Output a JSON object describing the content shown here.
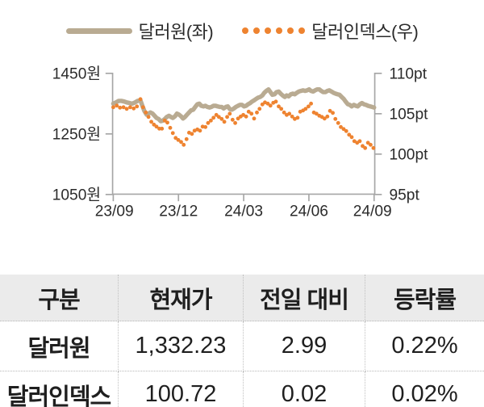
{
  "legend": {
    "krw_label": "달러원(좌)",
    "dxy_label": "달러인덱스(우)"
  },
  "colors": {
    "krw_line": "#b9ab92",
    "dxy_dot": "#ee8330",
    "axis": "#a6a6a6",
    "tick_text": "#2b2b2b",
    "table_header_bg": "#ebebeb",
    "table_dotted_border": "#bfbfbf"
  },
  "chart_data": {
    "type": "line",
    "title": "",
    "xlabel": "",
    "x_unit": "months since 2023-09",
    "x_range_months": [
      0,
      12
    ],
    "x_ticks": [
      "23/09",
      "23/12",
      "24/03",
      "24/06",
      "24/09"
    ],
    "left_axis": {
      "label": "달러원",
      "unit": "원",
      "range": [
        1050,
        1450
      ],
      "ticks": [
        "1450원",
        "1250원",
        "1050원"
      ]
    },
    "right_axis": {
      "label": "달러인덱스",
      "unit": "pt",
      "range": [
        95,
        110
      ],
      "ticks": [
        "110pt",
        "105pt",
        "100pt",
        "95pt"
      ]
    },
    "grid": false,
    "legend_position": "top",
    "series": [
      {
        "name": "달러원(좌)",
        "axis": "left",
        "style": "solid",
        "color": "#b9ab92",
        "points": [
          [
            0,
            1350
          ],
          [
            0.12,
            1354
          ],
          [
            0.25,
            1359
          ],
          [
            0.37,
            1359
          ],
          [
            0.5,
            1357
          ],
          [
            0.62,
            1354
          ],
          [
            0.75,
            1352
          ],
          [
            0.87,
            1350
          ],
          [
            1,
            1354
          ],
          [
            1.12,
            1359
          ],
          [
            1.25,
            1361
          ],
          [
            1.34,
            1343
          ],
          [
            1.43,
            1326
          ],
          [
            1.53,
            1314
          ],
          [
            1.62,
            1317
          ],
          [
            1.71,
            1321
          ],
          [
            1.81,
            1317
          ],
          [
            1.9,
            1310
          ],
          [
            1.99,
            1303
          ],
          [
            2.09,
            1299
          ],
          [
            2.18,
            1292
          ],
          [
            2.28,
            1294
          ],
          [
            2.37,
            1299
          ],
          [
            2.46,
            1306
          ],
          [
            2.56,
            1310
          ],
          [
            2.65,
            1306
          ],
          [
            2.74,
            1303
          ],
          [
            2.84,
            1308
          ],
          [
            2.93,
            1317
          ],
          [
            3.02,
            1314
          ],
          [
            3.12,
            1308
          ],
          [
            3.21,
            1301
          ],
          [
            3.3,
            1306
          ],
          [
            3.4,
            1314
          ],
          [
            3.49,
            1321
          ],
          [
            3.58,
            1328
          ],
          [
            3.68,
            1330
          ],
          [
            3.77,
            1339
          ],
          [
            3.87,
            1348
          ],
          [
            3.96,
            1350
          ],
          [
            4.05,
            1343
          ],
          [
            4.15,
            1341
          ],
          [
            4.24,
            1343
          ],
          [
            4.33,
            1339
          ],
          [
            4.43,
            1337
          ],
          [
            4.52,
            1339
          ],
          [
            4.61,
            1343
          ],
          [
            4.71,
            1343
          ],
          [
            4.8,
            1341
          ],
          [
            4.9,
            1339
          ],
          [
            4.99,
            1339
          ],
          [
            5.08,
            1334
          ],
          [
            5.18,
            1339
          ],
          [
            5.27,
            1341
          ],
          [
            5.36,
            1332
          ],
          [
            5.45,
            1330
          ],
          [
            5.55,
            1334
          ],
          [
            5.64,
            1339
          ],
          [
            5.74,
            1343
          ],
          [
            5.83,
            1346
          ],
          [
            5.92,
            1346
          ],
          [
            6.02,
            1341
          ],
          [
            6.11,
            1343
          ],
          [
            6.2,
            1348
          ],
          [
            6.3,
            1352
          ],
          [
            6.39,
            1357
          ],
          [
            6.48,
            1361
          ],
          [
            6.58,
            1366
          ],
          [
            6.67,
            1370
          ],
          [
            6.76,
            1372
          ],
          [
            6.86,
            1377
          ],
          [
            6.95,
            1386
          ],
          [
            7.04,
            1392
          ],
          [
            7.14,
            1397
          ],
          [
            7.23,
            1388
          ],
          [
            7.32,
            1379
          ],
          [
            7.42,
            1381
          ],
          [
            7.51,
            1388
          ],
          [
            7.61,
            1390
          ],
          [
            7.7,
            1383
          ],
          [
            7.79,
            1377
          ],
          [
            7.89,
            1372
          ],
          [
            7.98,
            1377
          ],
          [
            8.07,
            1374
          ],
          [
            8.17,
            1381
          ],
          [
            8.26,
            1383
          ],
          [
            8.35,
            1381
          ],
          [
            8.45,
            1386
          ],
          [
            8.54,
            1390
          ],
          [
            8.63,
            1392
          ],
          [
            8.73,
            1394
          ],
          [
            8.82,
            1392
          ],
          [
            8.92,
            1394
          ],
          [
            9.01,
            1397
          ],
          [
            9.1,
            1392
          ],
          [
            9.2,
            1390
          ],
          [
            9.29,
            1394
          ],
          [
            9.38,
            1397
          ],
          [
            9.48,
            1397
          ],
          [
            9.57,
            1392
          ],
          [
            9.66,
            1388
          ],
          [
            9.76,
            1388
          ],
          [
            9.85,
            1392
          ],
          [
            9.94,
            1394
          ],
          [
            10.04,
            1390
          ],
          [
            10.13,
            1386
          ],
          [
            10.23,
            1383
          ],
          [
            10.32,
            1381
          ],
          [
            10.41,
            1379
          ],
          [
            10.51,
            1372
          ],
          [
            10.6,
            1366
          ],
          [
            10.69,
            1357
          ],
          [
            10.79,
            1348
          ],
          [
            10.88,
            1346
          ],
          [
            10.97,
            1341
          ],
          [
            11.07,
            1346
          ],
          [
            11.16,
            1343
          ],
          [
            11.25,
            1341
          ],
          [
            11.35,
            1348
          ],
          [
            11.44,
            1352
          ],
          [
            11.53,
            1348
          ],
          [
            11.63,
            1346
          ],
          [
            11.72,
            1343
          ],
          [
            11.82,
            1341
          ],
          [
            11.91,
            1339
          ],
          [
            12,
            1337
          ]
        ]
      },
      {
        "name": "달러인덱스(우)",
        "axis": "right",
        "style": "dotted",
        "color": "#ee8330",
        "points": [
          [
            0,
            105.8
          ],
          [
            0.16,
            106
          ],
          [
            0.31,
            105.75
          ],
          [
            0.47,
            105.8
          ],
          [
            0.62,
            105.6
          ],
          [
            0.78,
            105.8
          ],
          [
            0.94,
            105.65
          ],
          [
            1.09,
            105.9
          ],
          [
            1.25,
            106.8
          ],
          [
            1.37,
            105.8
          ],
          [
            1.5,
            105.15
          ],
          [
            1.62,
            104.6
          ],
          [
            1.75,
            104
          ],
          [
            1.87,
            103.65
          ],
          [
            1.99,
            103.4
          ],
          [
            2.12,
            103.15
          ],
          [
            2.24,
            103.15
          ],
          [
            2.37,
            104.15
          ],
          [
            2.49,
            103.9
          ],
          [
            2.62,
            103.25
          ],
          [
            2.74,
            102.6
          ],
          [
            2.87,
            102
          ],
          [
            2.99,
            101.75
          ],
          [
            3.12,
            101.5
          ],
          [
            3.24,
            101.15
          ],
          [
            3.37,
            101.85
          ],
          [
            3.49,
            102.65
          ],
          [
            3.62,
            102.5
          ],
          [
            3.74,
            102.9
          ],
          [
            3.87,
            103.05
          ],
          [
            3.99,
            102.9
          ],
          [
            4.11,
            103.4
          ],
          [
            4.24,
            103.35
          ],
          [
            4.36,
            103.85
          ],
          [
            4.49,
            104.15
          ],
          [
            4.61,
            104.5
          ],
          [
            4.74,
            104.85
          ],
          [
            4.86,
            104.6
          ],
          [
            4.99,
            104.35
          ],
          [
            5.11,
            104
          ],
          [
            5.24,
            104.6
          ],
          [
            5.36,
            105
          ],
          [
            5.49,
            104.25
          ],
          [
            5.61,
            103.85
          ],
          [
            5.74,
            104.4
          ],
          [
            5.86,
            104.65
          ],
          [
            5.98,
            104.85
          ],
          [
            6.11,
            104.65
          ],
          [
            6.23,
            105.25
          ],
          [
            6.36,
            105
          ],
          [
            6.48,
            104.4
          ],
          [
            6.61,
            105.15
          ],
          [
            6.73,
            105.6
          ],
          [
            6.86,
            106.15
          ],
          [
            6.98,
            106.4
          ],
          [
            7.11,
            106.25
          ],
          [
            7.23,
            106
          ],
          [
            7.36,
            106.35
          ],
          [
            7.48,
            106.5
          ],
          [
            7.61,
            105.9
          ],
          [
            7.73,
            105.6
          ],
          [
            7.86,
            105.15
          ],
          [
            7.98,
            104.85
          ],
          [
            8.1,
            105
          ],
          [
            8.23,
            104.65
          ],
          [
            8.35,
            104.35
          ],
          [
            8.48,
            104.5
          ],
          [
            8.6,
            105.25
          ],
          [
            8.73,
            105.4
          ],
          [
            8.85,
            105.6
          ],
          [
            8.98,
            105.9
          ],
          [
            9.1,
            106.25
          ],
          [
            9.23,
            105.15
          ],
          [
            9.35,
            105
          ],
          [
            9.48,
            104.75
          ],
          [
            9.6,
            104.6
          ],
          [
            9.72,
            104.4
          ],
          [
            9.85,
            104.65
          ],
          [
            9.97,
            105.35
          ],
          [
            10.1,
            105.1
          ],
          [
            10.22,
            104.35
          ],
          [
            10.35,
            103.85
          ],
          [
            10.47,
            103.35
          ],
          [
            10.6,
            103.1
          ],
          [
            10.72,
            102.85
          ],
          [
            10.85,
            102.4
          ],
          [
            10.97,
            102.1
          ],
          [
            11.09,
            101.6
          ],
          [
            11.22,
            101.4
          ],
          [
            11.34,
            101.6
          ],
          [
            11.47,
            101
          ],
          [
            11.59,
            100.75
          ],
          [
            11.72,
            101.4
          ],
          [
            11.84,
            101.15
          ],
          [
            11.97,
            100.75
          ]
        ]
      }
    ]
  },
  "table": {
    "headers": [
      "구분",
      "현재가",
      "전일 대비",
      "등락률"
    ],
    "rows": [
      {
        "label": "달러원",
        "current": "1,332.23",
        "change": "2.99",
        "change_pct": "0.22%"
      },
      {
        "label": "달러인덱스",
        "current": "100.72",
        "change": "0.02",
        "change_pct": "0.02%"
      }
    ]
  }
}
